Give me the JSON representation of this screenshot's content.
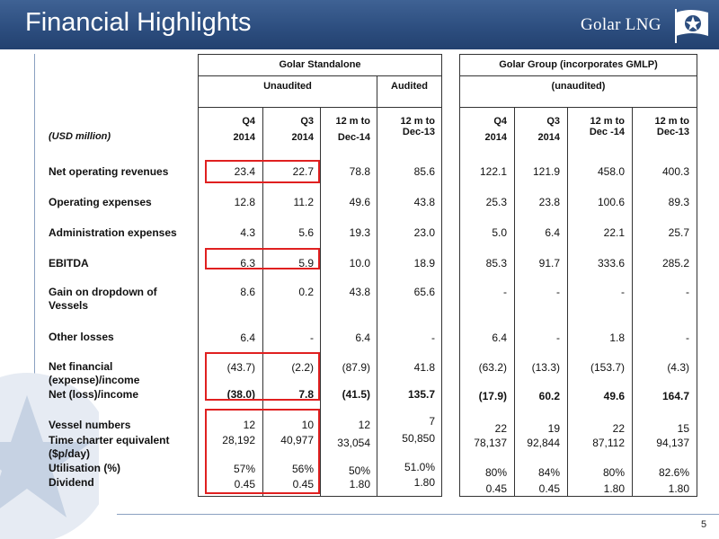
{
  "header": {
    "title": "Financial Highlights",
    "brand": "Golar LNG"
  },
  "page_number": "5",
  "table": {
    "units_label": "(USD million)",
    "standalone_title": "Golar Standalone",
    "group_title": "Golar Group  (incorporates GMLP)",
    "unaudited_label": "Unaudited",
    "audited_label": "Audited",
    "group_unaudited_label": "(unaudited)",
    "columns": [
      {
        "l1": "Q4",
        "l2": "2014"
      },
      {
        "l1": "Q3",
        "l2": "2014"
      },
      {
        "l1": "12 m to",
        "l2": "Dec-14"
      },
      {
        "l1": "12 m to",
        "l2": "Dec-13"
      },
      {
        "l1": "Q4",
        "l2": "2014"
      },
      {
        "l1": "Q3",
        "l2": "2014"
      },
      {
        "l1": "12 m to",
        "l2": "Dec -14"
      },
      {
        "l1": "12 m to",
        "l2": "Dec-13"
      }
    ],
    "rows": [
      {
        "label": "Net operating revenues",
        "values": [
          "23.4",
          "22.7",
          "78.8",
          "85.6",
          "122.1",
          "121.9",
          "458.0",
          "400.3"
        ]
      },
      {
        "label": "Operating expenses",
        "values": [
          "12.8",
          "11.2",
          "49.6",
          "43.8",
          "25.3",
          "23.8",
          "100.6",
          "89.3"
        ]
      },
      {
        "label": "Administration expenses",
        "values": [
          "4.3",
          "5.6",
          "19.3",
          "23.0",
          "5.0",
          "6.4",
          "22.1",
          "25.7"
        ]
      },
      {
        "label": "EBITDA",
        "values": [
          "6.3",
          "5.9",
          "10.0",
          "18.9",
          "85.3",
          "91.7",
          "333.6",
          "285.2"
        ]
      },
      {
        "label": "Gain on dropdown of Vessels",
        "values": [
          "8.6",
          "0.2",
          "43.8",
          "65.6",
          "-",
          "-",
          "-",
          "-"
        ]
      },
      {
        "label": "Other losses",
        "values": [
          "6.4",
          "-",
          "6.4",
          "-",
          "6.4",
          "-",
          "1.8",
          "-"
        ]
      },
      {
        "label": "Net financial (expense)/income",
        "values": [
          "(43.7)",
          "(2.2)",
          "(87.9)",
          "41.8",
          "(63.2)",
          "(13.3)",
          "(153.7)",
          "(4.3)"
        ]
      },
      {
        "label": "Net (loss)/income",
        "values": [
          "(38.0)",
          "7.8",
          "(41.5)",
          "135.7",
          "(17.9)",
          "60.2",
          "49.6",
          "164.7"
        ]
      },
      {
        "label": "Vessel numbers",
        "values": [
          "12",
          "10",
          "12",
          "7",
          "22",
          "19",
          "22",
          "15"
        ]
      },
      {
        "label": "Time charter equivalent ($p/day)",
        "values": [
          "28,192",
          "40,977",
          "33,054",
          "50,850",
          "78,137",
          "92,844",
          "87,112",
          "94,137"
        ]
      },
      {
        "label": "Utilisation (%)",
        "values": [
          "57%",
          "56%",
          "50%",
          "51.0%",
          "80%",
          "84%",
          "80%",
          "82.6%"
        ]
      },
      {
        "label": "Dividend",
        "values": [
          "0.45",
          "0.45",
          "1.80",
          "1.80",
          "0.45",
          "0.45",
          "1.80",
          "1.80"
        ]
      }
    ]
  },
  "colors": {
    "header_bg": "#2c4d7e",
    "highlight_box": "#e02020"
  }
}
